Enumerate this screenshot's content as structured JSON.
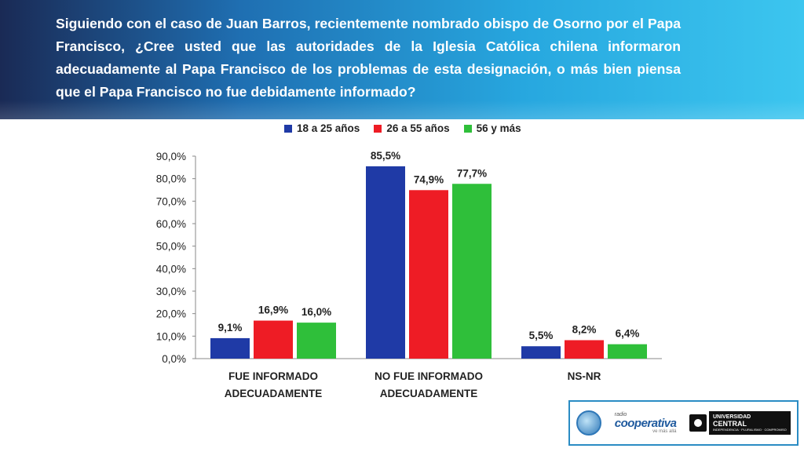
{
  "question": "Siguiendo con el caso de Juan Barros, recientemente nombrado obispo de Osorno por el Papa Francisco, ¿Cree usted que las autoridades de la Iglesia Católica chilena informaron adecuadamente al Papa Francisco de los problemas de esta designación, o más bien piensa que el Papa Francisco no fue debidamente informado?",
  "colors": {
    "s1": "#1f3aa6",
    "s2": "#ee1c25",
    "s3": "#2fbf3a"
  },
  "chart_data": {
    "type": "bar",
    "title": "",
    "categories": [
      [
        "FUE INFORMADO",
        "ADECUADAMENTE"
      ],
      [
        "NO FUE INFORMADO",
        "ADECUADAMENTE"
      ],
      [
        "NS-NR"
      ]
    ],
    "series": [
      {
        "name": "18 a 25 años",
        "values": [
          9.1,
          85.5,
          5.5
        ],
        "labels": [
          "9,1%",
          "85,5%",
          "5,5%"
        ]
      },
      {
        "name": "26 a 55 años",
        "values": [
          16.9,
          74.9,
          8.2
        ],
        "labels": [
          "16,9%",
          "74,9%",
          "8,2%"
        ]
      },
      {
        "name": "56 y más",
        "values": [
          16.0,
          77.7,
          6.4
        ],
        "labels": [
          "16,0%",
          "77,7%",
          "6,4%"
        ]
      }
    ],
    "ylim": [
      0,
      90
    ],
    "yticks": [
      0,
      10,
      20,
      30,
      40,
      50,
      60,
      70,
      80,
      90
    ],
    "ytick_labels": [
      "0,0%",
      "10,0%",
      "20,0%",
      "30,0%",
      "40,0%",
      "50,0%",
      "60,0%",
      "70,0%",
      "80,0%",
      "90,0%"
    ],
    "legend_position": "top"
  },
  "logos": {
    "cooperativa_small": "radio",
    "cooperativa_name": "cooperativa",
    "cooperativa_tag": "ve más allá",
    "university_top": "UNIVERSIDAD",
    "university_name": "CENTRAL",
    "university_tag": "INDEPENDENCIA · PLURALISMO · COMPROMISO"
  }
}
